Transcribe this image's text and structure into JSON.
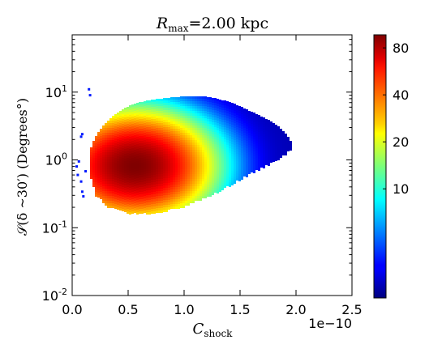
{
  "chart_data": {
    "type": "heatmap",
    "title": {
      "main": "R",
      "sub": "max",
      "rest": "=2.00 kpc"
    },
    "xlabel": {
      "main": "C",
      "sub": "shock"
    },
    "ylabel": "𝒮(δ ~30′) (Degrees°)",
    "x_offset_label": "1e−10",
    "xlim": [
      0.0,
      2.5
    ],
    "ylim": [
      0.01,
      70
    ],
    "yscale": "log",
    "x_ticks": [
      {
        "value": 0.0,
        "label": "0.0"
      },
      {
        "value": 0.5,
        "label": "0.5"
      },
      {
        "value": 1.0,
        "label": "1.0"
      },
      {
        "value": 1.5,
        "label": "1.5"
      },
      {
        "value": 2.0,
        "label": "2.0"
      },
      {
        "value": 2.5,
        "label": "2.5"
      }
    ],
    "y_ticks": [
      {
        "value": 10,
        "base": "10",
        "exp": "1"
      },
      {
        "value": 1,
        "base": "10",
        "exp": "0"
      },
      {
        "value": 0.1,
        "base": "10",
        "exp": "-1"
      },
      {
        "value": 0.01,
        "base": "10",
        "exp": "-2"
      }
    ],
    "colorbar": {
      "range": [
        2,
        97
      ],
      "ticks": [
        10,
        20,
        40,
        80
      ],
      "colormap": "jet"
    },
    "density_peak": {
      "x": 0.55,
      "y": 0.85,
      "value": 97
    },
    "density_envelope": {
      "x": [
        0.14,
        0.2,
        0.3,
        0.4,
        0.5,
        0.6,
        0.7,
        0.8,
        0.9,
        1.0,
        1.1,
        1.2,
        1.3,
        1.4,
        1.5,
        1.6,
        1.7,
        1.8,
        1.9,
        1.95
      ],
      "y_max": [
        1.2,
        2.2,
        3.6,
        5.0,
        6.2,
        7.0,
        7.6,
        8.0,
        8.3,
        8.5,
        8.6,
        8.4,
        7.8,
        7.0,
        6.0,
        5.0,
        4.2,
        3.4,
        2.4,
        1.8
      ],
      "y_min": [
        0.7,
        0.32,
        0.22,
        0.19,
        0.17,
        0.17,
        0.17,
        0.18,
        0.2,
        0.22,
        0.26,
        0.3,
        0.36,
        0.44,
        0.55,
        0.68,
        0.82,
        1.0,
        1.3,
        1.5
      ]
    },
    "scatter_outliers": [
      {
        "x": 0.04,
        "y": 0.8
      },
      {
        "x": 0.06,
        "y": 0.95
      },
      {
        "x": 0.08,
        "y": 0.48
      },
      {
        "x": 0.09,
        "y": 0.34
      },
      {
        "x": 0.1,
        "y": 0.29
      },
      {
        "x": 0.12,
        "y": 0.68
      },
      {
        "x": 0.08,
        "y": 2.2
      },
      {
        "x": 0.09,
        "y": 2.4
      },
      {
        "x": 0.15,
        "y": 11
      },
      {
        "x": 0.16,
        "y": 9
      },
      {
        "x": 0.05,
        "y": 0.6
      }
    ]
  }
}
